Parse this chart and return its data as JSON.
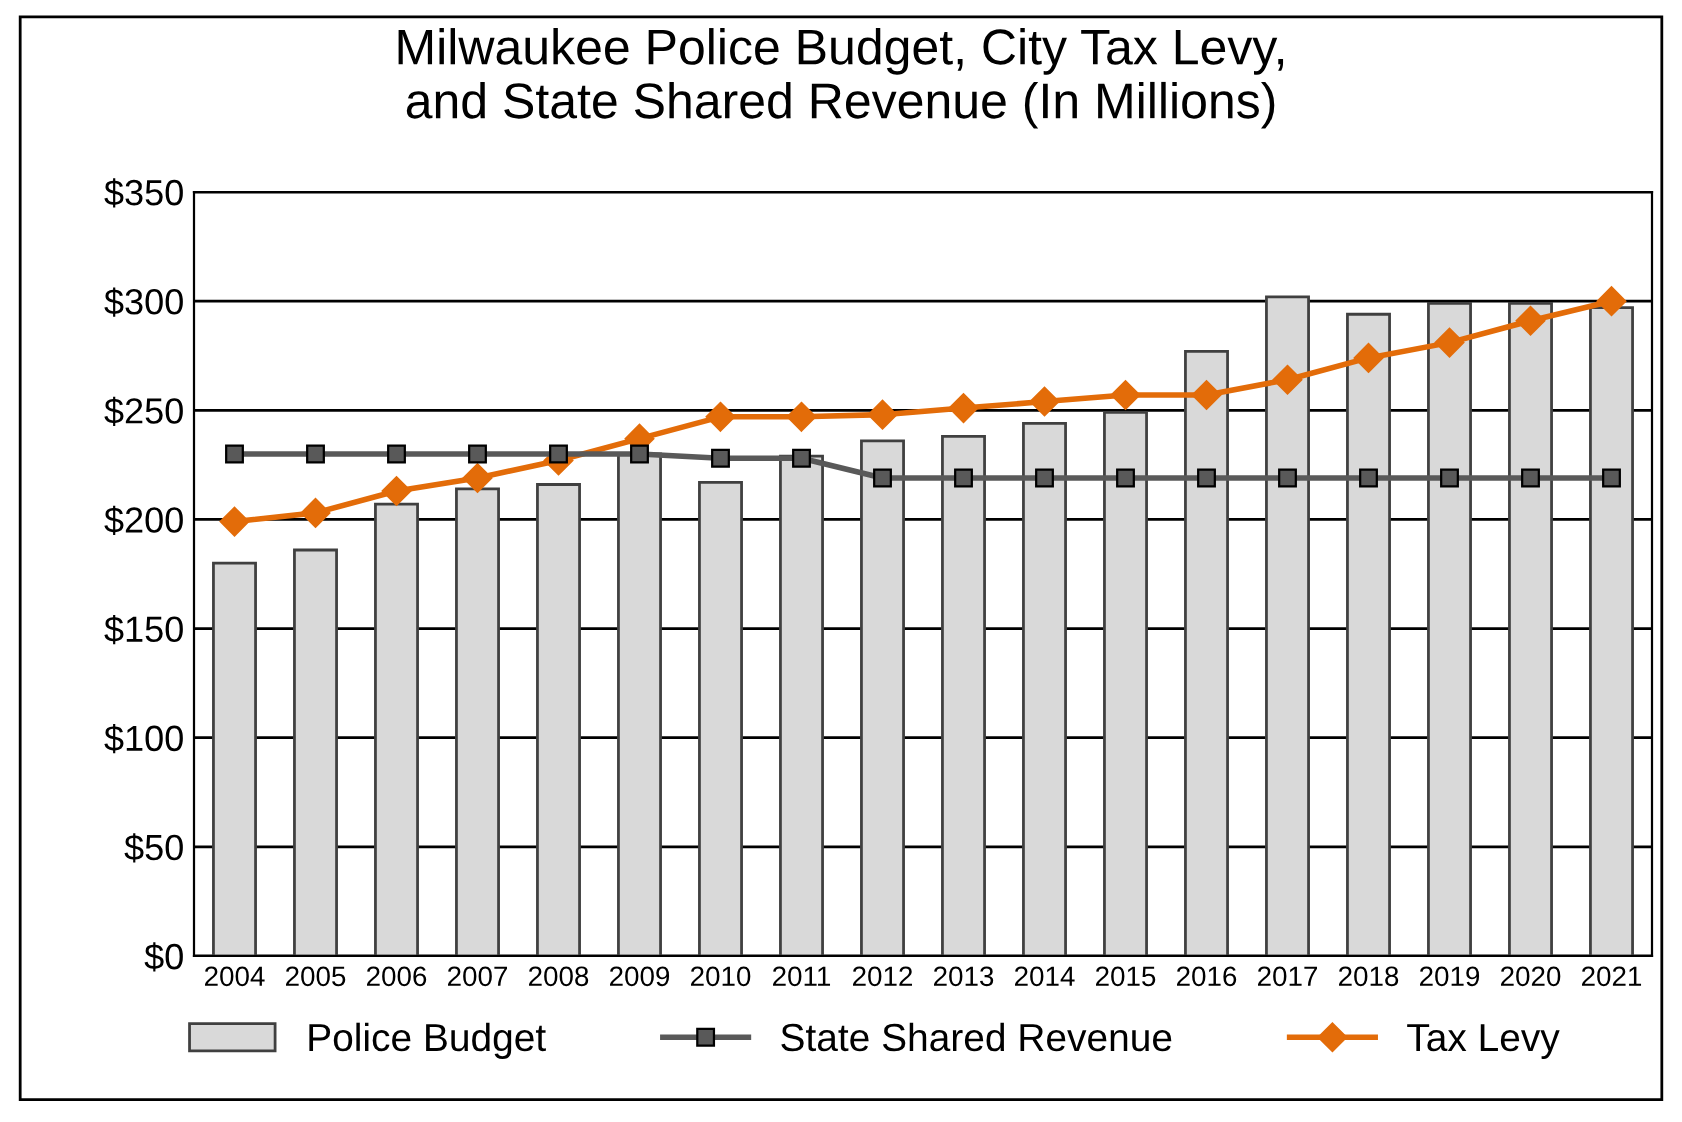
{
  "chart_data": {
    "type": "bar",
    "title": "Milwaukee Police Budget, City Tax Levy,\nand State Shared Revenue (In Millions)",
    "categories": [
      "2004",
      "2005",
      "2006",
      "2007",
      "2008",
      "2009",
      "2010",
      "2011",
      "2012",
      "2013",
      "2014",
      "2015",
      "2016",
      "2017",
      "2018",
      "2019",
      "2020",
      "2021"
    ],
    "series": [
      {
        "name": "Police Budget",
        "color": "#d9d9d9",
        "values": [
          180,
          186,
          207,
          214,
          216,
          230,
          217,
          229,
          236,
          238,
          244,
          249,
          277,
          302,
          294,
          299,
          299,
          297
        ]
      },
      {
        "name": "State Shared Revenue",
        "type": "line",
        "color": "#595959",
        "marker": "square",
        "values": [
          230,
          230,
          230,
          230,
          230,
          230,
          228,
          228,
          219,
          219,
          219,
          219,
          219,
          219,
          219,
          219,
          219,
          219
        ]
      },
      {
        "name": "Tax Levy",
        "type": "line",
        "color": "#e36c09",
        "marker": "diamond",
        "values": [
          199,
          203,
          213,
          219,
          227,
          237,
          247,
          247,
          248,
          251,
          254,
          257,
          257,
          264,
          274,
          281,
          291,
          300
        ]
      }
    ],
    "ylim": [
      0,
      350
    ],
    "yticks": [
      {
        "value": 0,
        "label": "$0"
      },
      {
        "value": 50,
        "label": "$50"
      },
      {
        "value": 100,
        "label": "$100"
      },
      {
        "value": 150,
        "label": "$150"
      },
      {
        "value": 200,
        "label": "$200"
      },
      {
        "value": 250,
        "label": "$250"
      },
      {
        "value": 300,
        "label": "$300"
      },
      {
        "value": 350,
        "label": "$350"
      }
    ],
    "grid": "y",
    "legend": "bottom"
  }
}
